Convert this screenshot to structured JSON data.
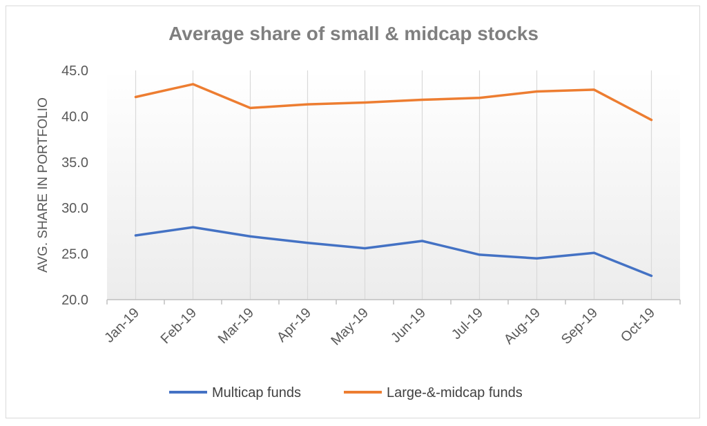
{
  "chart_data": {
    "type": "line",
    "title": "Average share of small & midcap stocks",
    "ylabel": "AVG. SHARE IN PORTFOLIO",
    "xlabel": "",
    "ylim": [
      20,
      45
    ],
    "yticks": [
      "20.0",
      "25.0",
      "30.0",
      "35.0",
      "40.0",
      "45.0"
    ],
    "categories": [
      "Jan-19",
      "Feb-19",
      "Mar-19",
      "Apr-19",
      "May-19",
      "Jun-19",
      "Jul-19",
      "Aug-19",
      "Sep-19",
      "Oct-19"
    ],
    "series": [
      {
        "name": "Multicap funds",
        "color": "#4472c4",
        "values": [
          27.0,
          27.9,
          26.9,
          26.2,
          25.6,
          26.4,
          24.9,
          24.5,
          25.1,
          22.6
        ]
      },
      {
        "name": "Large-&-midcap funds",
        "color": "#ed7d31",
        "values": [
          42.1,
          43.5,
          40.9,
          41.3,
          41.5,
          41.8,
          42.0,
          42.7,
          42.9,
          39.6
        ]
      }
    ],
    "grid": "vertical",
    "legend": "bottom"
  }
}
